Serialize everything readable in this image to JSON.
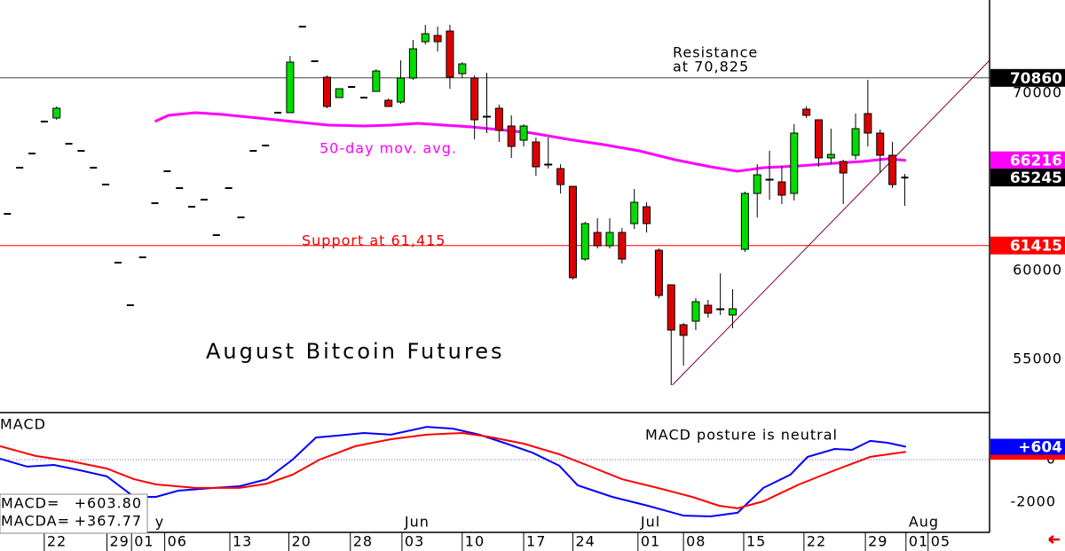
{
  "chart_data": {
    "type": "candlestick",
    "title": "August Bitcoin Futures",
    "annotations": {
      "resistance": [
        "Resistance",
        "at 70,825"
      ],
      "moving_average": "50-day mov. avg.",
      "support": "Support at 61,415"
    },
    "xlim": [
      -0.6,
      79.9
    ],
    "ylim": [
      52000,
      75250
    ],
    "yticks": [
      55000,
      60000,
      70000
    ],
    "xticks": [
      {
        "value": 3.0,
        "label": "22"
      },
      {
        "value": 8.1,
        "label": "29"
      },
      {
        "value": 10.1,
        "label": "01"
      },
      {
        "value": 12.8,
        "label": "06"
      },
      {
        "value": 18.1,
        "label": "13"
      },
      {
        "value": 22.9,
        "label": "20"
      },
      {
        "value": 27.9,
        "label": "28"
      },
      {
        "value": 32.1,
        "label": "03"
      },
      {
        "value": 37.0,
        "label": "10"
      },
      {
        "value": 42.0,
        "label": "17"
      },
      {
        "value": 46.0,
        "label": "24"
      },
      {
        "value": 51.3,
        "label": "01"
      },
      {
        "value": 55.0,
        "label": "08"
      },
      {
        "value": 59.9,
        "label": "15"
      },
      {
        "value": 64.8,
        "label": "22"
      },
      {
        "value": 69.8,
        "label": "29"
      },
      {
        "value": 73.1,
        "label": "01"
      },
      {
        "value": 74.9,
        "label": "05"
      }
    ],
    "month_labels": [
      {
        "value": 11.8,
        "label": "y"
      },
      {
        "value": 32.1,
        "label": "Jun"
      },
      {
        "value": 51.3,
        "label": "Jul"
      },
      {
        "value": 73.1,
        "label": "Aug"
      }
    ],
    "up_color": "#00dd00",
    "down_color": "#dd0000",
    "flat_color": "#000000",
    "open": [
      63200,
      65800,
      66600,
      68400,
      68600,
      67150,
      66750,
      65800,
      64850,
      60450,
      58050,
      60750,
      63800,
      65600,
      64650,
      63600,
      64000,
      62000,
      64650,
      63000,
      66750,
      67050,
      68900,
      68900,
      73750,
      71800,
      70900,
      69750,
      70350,
      69750,
      70100,
      69600,
      69500,
      70850,
      72900,
      73250,
      73500,
      71100,
      70850,
      68700,
      69150,
      68150,
      67350,
      67250,
      66000,
      65750,
      64750,
      60650,
      62150,
      61400,
      62150,
      62650,
      63600,
      61150,
      59200,
      56950,
      57150,
      58050,
      57850,
      57500,
      61200,
      64350,
      65150,
      65000,
      64350,
      69100,
      68500,
      66350,
      66150,
      66500,
      68850,
      67750,
      66500,
      65245
    ],
    "high": [
      63200,
      65800,
      66600,
      68400,
      69250,
      67150,
      66750,
      65800,
      64850,
      60450,
      58050,
      60750,
      63800,
      65600,
      64650,
      63600,
      64000,
      62000,
      64650,
      63000,
      66750,
      67050,
      68900,
      72100,
      73750,
      71800,
      71000,
      70250,
      70350,
      69750,
      71350,
      69700,
      71850,
      73000,
      73850,
      73750,
      73850,
      71750,
      71000,
      71150,
      69350,
      68750,
      68250,
      67500,
      67500,
      66000,
      64750,
      62750,
      62950,
      62950,
      62400,
      64600,
      63850,
      61250,
      59200,
      57050,
      58450,
      58350,
      59850,
      58950,
      64450,
      66000,
      66750,
      65900,
      68250,
      69250,
      68500,
      68000,
      66250,
      68850,
      70750,
      67950,
      67250,
      65450
    ],
    "low": [
      63200,
      65800,
      66600,
      68400,
      68500,
      67150,
      66750,
      65800,
      64850,
      60450,
      58050,
      60750,
      63800,
      65600,
      64650,
      63600,
      64000,
      62000,
      64650,
      63000,
      66750,
      67050,
      68900,
      68900,
      73750,
      71800,
      69150,
      69750,
      70350,
      69750,
      70100,
      69250,
      69400,
      70750,
      72750,
      72350,
      70250,
      70850,
      67400,
      67750,
      67250,
      66350,
      67000,
      65350,
      65750,
      64350,
      59500,
      60550,
      61250,
      61250,
      60400,
      62350,
      62150,
      58450,
      53550,
      54650,
      56650,
      57350,
      57500,
      56750,
      61050,
      63000,
      64000,
      63750,
      63950,
      68600,
      65850,
      66000,
      63750,
      66250,
      67000,
      65500,
      64650,
      63650
    ],
    "close": [
      63200,
      65800,
      66600,
      68400,
      69150,
      67150,
      66750,
      65800,
      64850,
      60450,
      58050,
      60750,
      63800,
      65600,
      64650,
      63600,
      64000,
      62000,
      64650,
      63000,
      66750,
      67050,
      68900,
      71750,
      73750,
      71800,
      69250,
      70250,
      70350,
      69750,
      71250,
      69250,
      70850,
      72500,
      73350,
      72900,
      70900,
      71650,
      68500,
      68650,
      67900,
      67000,
      68150,
      65850,
      65950,
      64850,
      59600,
      62650,
      61400,
      62150,
      60650,
      63850,
      62650,
      58600,
      56650,
      56350,
      58250,
      57600,
      57800,
      57850,
      64350,
      65400,
      65100,
      64250,
      67750,
      68750,
      66350,
      66550,
      65500,
      68000,
      67750,
      66500,
      64850,
      65245
    ],
    "moving_average": {
      "color": "#ff00ff",
      "x": [
        12,
        13.1,
        15.3,
        17.5,
        20.4,
        23.2,
        26.1,
        29,
        31.2,
        33.4,
        35.5,
        37.7,
        39.9,
        42.7,
        45.6,
        48.5,
        51.4,
        54.3,
        57.2,
        59.4,
        61.5,
        64.4,
        67.3,
        69.5,
        71.6,
        73.1
      ],
      "values": [
        68400,
        68750,
        68900,
        68800,
        68600,
        68400,
        68200,
        68150,
        68200,
        68300,
        68200,
        68100,
        67950,
        67750,
        67400,
        67100,
        66750,
        66250,
        65850,
        65600,
        65800,
        65900,
        66050,
        66150,
        66300,
        66216
      ]
    },
    "trendline": {
      "color": "#80003c",
      "x": [
        54.1,
        79.9
      ],
      "values": [
        53550,
        71850
      ]
    },
    "price_labels": [
      {
        "value": 70860,
        "color": "#000000",
        "line": "#444444"
      },
      {
        "value": 66216,
        "color": "#ff00ff"
      },
      {
        "value": 65245,
        "color": "#000000"
      },
      {
        "value": 61415,
        "color": "#ff0000",
        "line": "#ff0000"
      }
    ],
    "macd": {
      "title": "MACD",
      "note": "MACD posture is neutral",
      "ylim": [
        -3420,
        2210
      ],
      "yticks": [
        -2000,
        0
      ],
      "series": [
        {
          "color": "#0000ff",
          "x": [
            -0.6,
            1.6,
            3.8,
            5.9,
            8.1,
            10.3,
            12.1,
            13.9,
            16.8,
            18.9,
            21.1,
            23.2,
            25.1,
            26.9,
            29.0,
            31.2,
            34.1,
            36.2,
            38.4,
            40.6,
            42.7,
            44.9,
            46.4,
            49.2,
            52.1,
            55.0,
            57.2,
            59.4,
            61.5,
            63.7,
            65.1,
            67.3,
            68.7,
            70.2,
            71.6,
            73.1
          ],
          "values": [
            40,
            -330,
            -250,
            -500,
            -790,
            -1750,
            -1750,
            -1460,
            -1330,
            -1250,
            -920,
            0,
            1040,
            1130,
            1250,
            1170,
            1540,
            1460,
            1170,
            750,
            330,
            -290,
            -1210,
            -1750,
            -2170,
            -2630,
            -2670,
            -2500,
            -1330,
            -710,
            130,
            500,
            460,
            880,
            790,
            603.8
          ]
        },
        {
          "color": "#ff0000",
          "x": [
            -0.6,
            2.3,
            5.2,
            8.1,
            10.3,
            12.1,
            15.3,
            18.9,
            21.1,
            23.2,
            25.4,
            28.3,
            31.2,
            34.1,
            37.0,
            39.1,
            42.0,
            44.9,
            47.1,
            50.0,
            52.9,
            55.7,
            57.9,
            59.4,
            61.5,
            64.4,
            67.3,
            70.2,
            73.1
          ],
          "values": [
            630,
            170,
            -80,
            -420,
            -920,
            -1170,
            -1330,
            -1330,
            -1130,
            -710,
            0,
            630,
            960,
            1170,
            1250,
            1080,
            750,
            250,
            -250,
            -920,
            -1330,
            -1750,
            -2170,
            -2290,
            -1960,
            -1170,
            -500,
            130,
            367.77
          ]
        }
      ],
      "price_labels": [
        {
          "value": 367.77,
          "color": "#ff0000"
        },
        {
          "value": 603.8,
          "label": "+604",
          "color": "#0000ff"
        }
      ],
      "readout": [
        {
          "name": "MACD=",
          "value": "+603.80"
        },
        {
          "name": "MACDA=",
          "value": "+367.77"
        }
      ]
    }
  }
}
